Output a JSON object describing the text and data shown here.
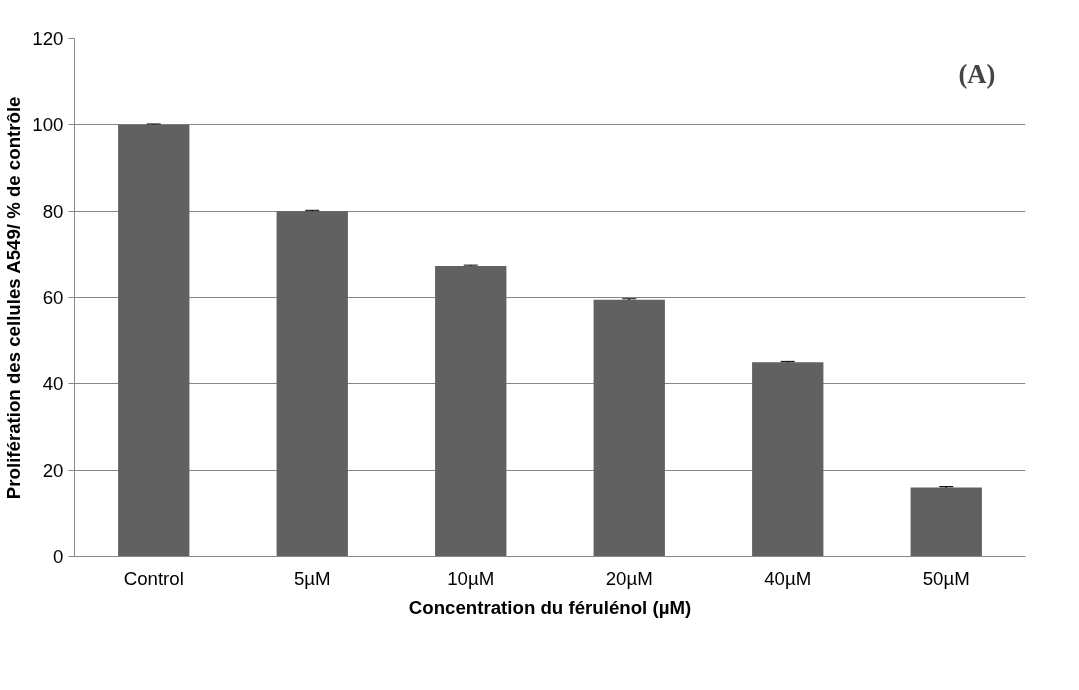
{
  "chart_data": {
    "type": "bar",
    "xlabel": "Concentration du férulénol (µM)",
    "ylabel": "Prolifération des cellules A549/ % de contrôle",
    "categories": [
      "Control",
      "5µM",
      "10µM",
      "20µM",
      "40µM",
      "50µM"
    ],
    "values": [
      100,
      80,
      67.3,
      59.5,
      45,
      16
    ],
    "errors": [
      0.2,
      0.2,
      0.2,
      0.2,
      0.2,
      0.2
    ],
    "color": "#616161",
    "ylim": [
      0,
      120
    ],
    "yticks": [
      0,
      20,
      40,
      60,
      80,
      100,
      120
    ],
    "grid": "y",
    "annotations": [
      "(A)"
    ]
  }
}
